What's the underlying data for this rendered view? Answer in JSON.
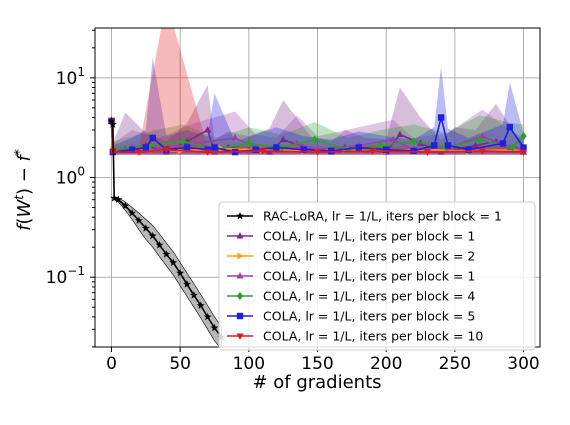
{
  "chart_data": {
    "type": "line",
    "xlabel": "# of gradients",
    "ylabel": "f(W^t) − f^*",
    "xlim": [
      -12,
      312
    ],
    "ylim_log10": [
      -1.7,
      1.5
    ],
    "yscale": "log",
    "grid": true,
    "legend_placement": "lower-right",
    "x_ticks": [
      0,
      50,
      100,
      150,
      200,
      250,
      300
    ],
    "x_tick_labels": [
      "0",
      "50",
      "100",
      "150",
      "200",
      "250",
      "300"
    ],
    "y_ticks": [
      -1,
      0,
      1
    ],
    "y_tick_labels": [
      {
        "base": "10",
        "exp": "−1"
      },
      {
        "base": "10",
        "exp": "0"
      },
      {
        "base": "10",
        "exp": "1"
      }
    ],
    "series": [
      {
        "name": "RAC-LoRA, lr = 1/L, iters per block = 1",
        "color": "#000000",
        "marker": "star",
        "x": [
          0,
          1,
          2,
          5,
          10,
          15,
          20,
          25,
          30,
          35,
          40,
          45,
          50,
          55,
          60,
          65,
          70,
          75,
          80
        ],
        "y": [
          3.7,
          3.4,
          0.62,
          0.6,
          0.52,
          0.44,
          0.37,
          0.31,
          0.26,
          0.21,
          0.17,
          0.14,
          0.11,
          0.085,
          0.066,
          0.052,
          0.04,
          0.031,
          0.025
        ],
        "band_lo": [
          3.6,
          3.3,
          0.6,
          0.57,
          0.47,
          0.38,
          0.3,
          0.24,
          0.2,
          0.16,
          0.13,
          0.105,
          0.082,
          0.064,
          0.05,
          0.039,
          0.03,
          0.023,
          0.019
        ],
        "band_hi": [
          3.8,
          3.5,
          0.64,
          0.63,
          0.57,
          0.5,
          0.44,
          0.38,
          0.33,
          0.27,
          0.22,
          0.18,
          0.14,
          0.11,
          0.086,
          0.067,
          0.052,
          0.04,
          0.032
        ]
      },
      {
        "name": "COLA, lr = 1/L, iters per block = 1",
        "color": "#7b2a8c",
        "marker": "triangle-up",
        "x": [
          0,
          1,
          10,
          25,
          40,
          55,
          70,
          75,
          85,
          100,
          115,
          125,
          145,
          160,
          170,
          185,
          200,
          210,
          225,
          240,
          250,
          265,
          280,
          295,
          300
        ],
        "y": [
          3.7,
          1.8,
          1.9,
          2.1,
          1.8,
          2.3,
          3.0,
          1.8,
          2.0,
          1.9,
          1.8,
          2.4,
          1.9,
          1.8,
          2.0,
          1.9,
          1.8,
          2.7,
          2.2,
          1.8,
          1.9,
          2.1,
          2.3,
          1.9,
          1.8
        ],
        "band_lo": [
          3.6,
          1.7,
          1.7,
          1.7,
          1.7,
          1.7,
          1.7,
          1.7,
          1.7,
          1.7,
          1.7,
          1.7,
          1.7,
          1.7,
          1.7,
          1.7,
          1.7,
          1.7,
          1.7,
          1.7,
          1.7,
          1.7,
          1.7,
          1.7,
          1.7
        ],
        "band_hi": [
          3.8,
          2.2,
          4.5,
          2.8,
          2.3,
          3.5,
          8.5,
          2.4,
          2.9,
          2.6,
          3.1,
          6.0,
          2.6,
          2.3,
          3.0,
          2.5,
          2.4,
          8.0,
          4.0,
          2.4,
          3.2,
          3.0,
          5.5,
          2.6,
          2.4
        ]
      },
      {
        "name": "COLA, lr = 1/L, iters per block = 2",
        "color": "#ff9f1c",
        "marker": "triangle-right",
        "x": [
          0,
          1,
          20,
          50,
          80,
          110,
          140,
          170,
          200,
          230,
          260,
          300
        ],
        "y": [
          3.7,
          1.9,
          1.9,
          1.85,
          1.95,
          1.9,
          1.85,
          1.9,
          1.85,
          1.9,
          1.85,
          1.9
        ],
        "band_lo": [
          3.6,
          1.75,
          1.75,
          1.75,
          1.75,
          1.75,
          1.75,
          1.75,
          1.75,
          1.75,
          1.75,
          1.75
        ],
        "band_hi": [
          3.8,
          2.1,
          2.2,
          2.1,
          2.3,
          2.1,
          2.2,
          2.1,
          2.2,
          2.3,
          2.1,
          2.2
        ]
      },
      {
        "name": "COLA, lr = 1/L, iters per block = 1",
        "color": "#9b3fae",
        "marker": "triangle-up",
        "x": [
          0,
          1,
          15,
          35,
          60,
          90,
          105,
          120,
          135,
          150,
          180,
          205,
          220,
          245,
          270,
          290,
          300
        ],
        "y": [
          3.7,
          1.8,
          2.0,
          1.9,
          2.2,
          2.5,
          2.0,
          1.9,
          2.2,
          1.9,
          2.1,
          2.4,
          1.9,
          2.0,
          2.6,
          2.0,
          1.9
        ],
        "band_lo": [
          3.6,
          1.7,
          1.7,
          1.7,
          1.7,
          1.7,
          1.7,
          1.7,
          1.7,
          1.7,
          1.7,
          1.7,
          1.7,
          1.7,
          1.7,
          1.7,
          1.7
        ],
        "band_hi": [
          3.8,
          2.2,
          3.0,
          2.5,
          3.5,
          4.6,
          2.7,
          2.5,
          4.2,
          2.6,
          3.2,
          3.8,
          2.5,
          2.8,
          4.8,
          3.0,
          2.5
        ]
      },
      {
        "name": "COLA, lr = 1/L, iters per block = 4",
        "color": "#2ca02c",
        "marker": "diamond",
        "x": [
          0,
          1,
          28,
          52,
          76,
          100,
          124,
          148,
          172,
          196,
          220,
          244,
          268,
          292,
          300
        ],
        "y": [
          3.7,
          1.9,
          2.1,
          2.3,
          1.9,
          2.2,
          2.0,
          2.4,
          1.9,
          2.1,
          2.3,
          2.0,
          2.4,
          2.0,
          2.6
        ],
        "band_lo": [
          3.6,
          1.75,
          1.75,
          1.75,
          1.75,
          1.75,
          1.75,
          1.75,
          1.75,
          1.75,
          1.75,
          1.75,
          1.75,
          1.75,
          1.75
        ],
        "band_hi": [
          3.8,
          2.3,
          2.9,
          3.4,
          2.5,
          3.2,
          2.7,
          3.6,
          2.5,
          3.0,
          3.4,
          2.8,
          4.2,
          3.5,
          3.4
        ]
      },
      {
        "name": "COLA, lr = 1/L, iters per block = 5",
        "color": "#1f1fe0",
        "marker": "square",
        "x": [
          0,
          1,
          15,
          25,
          30,
          40,
          55,
          70,
          75,
          90,
          105,
          120,
          140,
          160,
          180,
          200,
          220,
          235,
          240,
          245,
          260,
          285,
          290,
          300
        ],
        "y": [
          3.7,
          1.8,
          1.9,
          2.0,
          2.5,
          1.9,
          2.0,
          1.9,
          2.0,
          1.8,
          1.9,
          2.0,
          1.9,
          1.85,
          2.0,
          1.9,
          1.85,
          2.1,
          4.0,
          2.1,
          1.9,
          2.2,
          3.2,
          2.0
        ],
        "band_lo": [
          3.6,
          1.7,
          1.7,
          1.7,
          1.7,
          1.7,
          1.7,
          1.7,
          1.7,
          1.7,
          1.7,
          1.7,
          1.7,
          1.7,
          1.7,
          1.7,
          1.7,
          1.7,
          1.7,
          1.7,
          1.7,
          1.7,
          1.7,
          1.7
        ],
        "band_hi": [
          3.8,
          2.1,
          2.5,
          3.0,
          16.0,
          2.6,
          3.0,
          2.6,
          7.0,
          2.3,
          2.7,
          3.2,
          2.6,
          2.4,
          2.9,
          2.6,
          2.4,
          3.2,
          13.0,
          3.1,
          2.5,
          3.4,
          9.0,
          2.8
        ]
      },
      {
        "name": "COLA, lr = 1/L, iters per block = 10",
        "color": "#e0191b",
        "marker": "triangle-down",
        "x": [
          0,
          1,
          20,
          40,
          70,
          110,
          150,
          190,
          230,
          270,
          300
        ],
        "y": [
          3.7,
          1.8,
          1.8,
          1.9,
          1.8,
          1.85,
          1.8,
          1.85,
          1.8,
          1.85,
          1.8
        ],
        "band_lo": [
          3.6,
          1.7,
          1.7,
          1.7,
          1.7,
          1.7,
          1.7,
          1.7,
          1.7,
          1.7,
          1.7
        ],
        "band_hi": [
          3.8,
          2.0,
          2.0,
          60.0,
          2.0,
          2.1,
          2.0,
          2.1,
          2.0,
          2.1,
          2.0
        ]
      }
    ]
  }
}
